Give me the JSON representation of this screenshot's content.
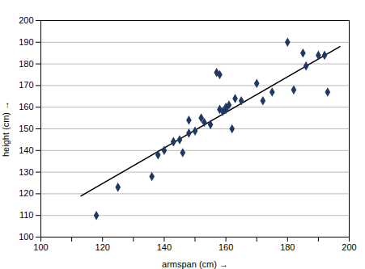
{
  "chart_data": {
    "type": "scatter",
    "xlabel": "armspan (cm)",
    "ylabel": "height (cm)",
    "xlim": [
      100,
      200
    ],
    "ylim": [
      100,
      200
    ],
    "xticks": [
      100,
      {
        "value": 110,
        "label": null
      },
      120,
      {
        "value": 130,
        "label": null
      },
      140,
      {
        "value": 150,
        "label": null
      },
      160,
      {
        "value": 170,
        "label": null
      },
      180,
      {
        "value": 190,
        "label": null
      },
      200
    ],
    "yticks": [
      100,
      110,
      120,
      130,
      140,
      150,
      160,
      170,
      180,
      190,
      200
    ],
    "grid": "y",
    "series": [
      {
        "type": "line",
        "color": "#000000",
        "x": [
          113,
          197
        ],
        "values": [
          119,
          188
        ]
      },
      {
        "type": "scatter",
        "color": "#1F3864",
        "marker": "diamond",
        "x": [
          118,
          125,
          136,
          138,
          140,
          143,
          143,
          145,
          146,
          148,
          148,
          150,
          152,
          153,
          155,
          157,
          158,
          158,
          159,
          160,
          160,
          161,
          162,
          163,
          165,
          170,
          172,
          175,
          180,
          182,
          185,
          186,
          190,
          192,
          193
        ],
        "values": [
          110,
          123,
          128,
          138,
          140,
          144,
          144,
          145,
          139,
          148,
          154,
          149,
          155,
          153,
          152,
          176,
          175,
          159,
          158,
          159,
          160,
          161,
          150,
          164,
          163,
          171,
          163,
          167,
          190,
          168,
          185,
          179,
          184,
          184,
          167
        ]
      }
    ]
  }
}
